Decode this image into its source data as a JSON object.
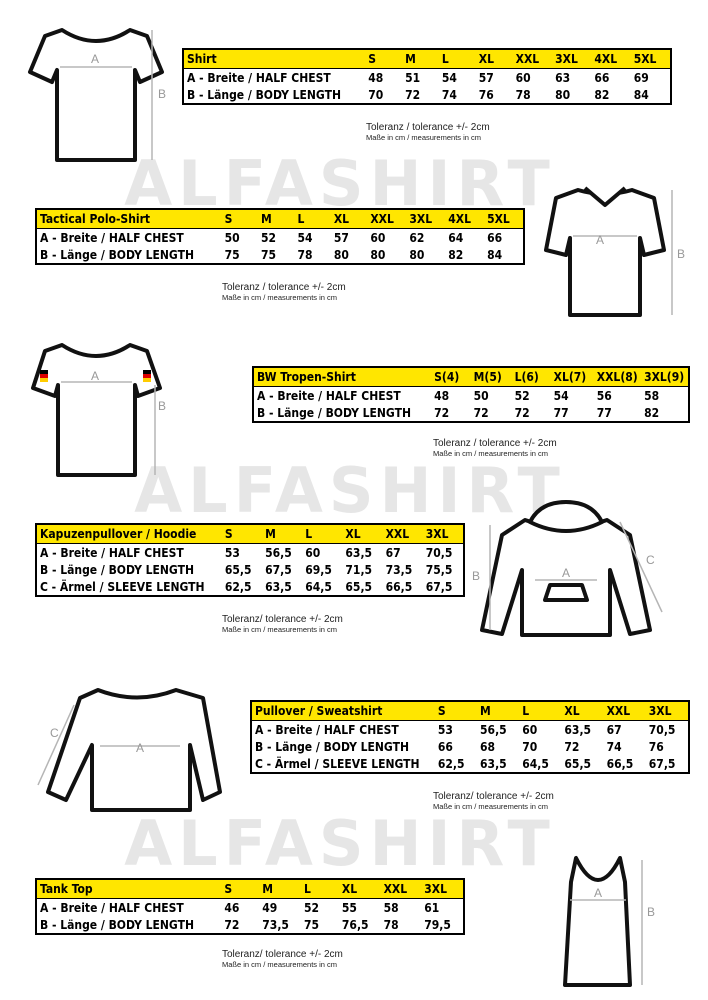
{
  "watermark": "ALFASHIRT",
  "dimension_labels": [
    "A",
    "B",
    "C"
  ],
  "sections": [
    {
      "table": {
        "header": [
          "Shirt",
          "S",
          "M",
          "L",
          "XL",
          "XXL",
          "3XL",
          "4XL",
          "5XL"
        ],
        "rows": [
          [
            "A -  Breite / HALF CHEST",
            "48",
            "51",
            "54",
            "57",
            "60",
            "63",
            "66",
            "69"
          ],
          [
            "B -  Länge / BODY LENGTH",
            "70",
            "72",
            "74",
            "76",
            "78",
            "80",
            "82",
            "84"
          ]
        ]
      },
      "note": {
        "tolerance": "Toleranz / tolerance +/- 2cm",
        "units": "Maße in cm / measurements in cm"
      }
    },
    {
      "table": {
        "header": [
          "Tactical Polo-Shirt",
          "S",
          "M",
          "L",
          "XL",
          "XXL",
          "3XL",
          "4XL",
          "5XL"
        ],
        "rows": [
          [
            "A -  Breite / HALF CHEST",
            "50",
            "52",
            "54",
            "57",
            "60",
            "62",
            "64",
            "66"
          ],
          [
            "B -  Länge / BODY LENGTH",
            "75",
            "75",
            "78",
            "80",
            "80",
            "80",
            "82",
            "84"
          ]
        ]
      },
      "note": {
        "tolerance": "Toleranz / tolerance +/- 2cm",
        "units": "Maße in cm / measurements in cm"
      }
    },
    {
      "table": {
        "header": [
          "BW Tropen-Shirt",
          "S(4)",
          "M(5)",
          "L(6)",
          "XL(7)",
          "XXL(8)",
          "3XL(9)"
        ],
        "rows": [
          [
            "A -  Breite / HALF CHEST",
            "48",
            "50",
            "52",
            "54",
            "56",
            "58"
          ],
          [
            "B -  Länge / BODY LENGTH",
            "72",
            "72",
            "72",
            "77",
            "77",
            "82"
          ]
        ]
      },
      "note": {
        "tolerance": "Toleranz / tolerance +/- 2cm",
        "units": "Maße in cm / measurements in cm"
      }
    },
    {
      "table": {
        "header": [
          "Kapuzenpullover / Hoodie",
          "S",
          "M",
          "L",
          "XL",
          "XXL",
          "3XL"
        ],
        "rows": [
          [
            "A -  Breite / HALF CHEST",
            "53",
            "56,5",
            "60",
            "63,5",
            "67",
            "70,5"
          ],
          [
            "B -  Länge / BODY LENGTH",
            "65,5",
            "67,5",
            "69,5",
            "71,5",
            "73,5",
            "75,5"
          ],
          [
            "C -  Ärmel / SLEEVE LENGTH",
            "62,5",
            "63,5",
            "64,5",
            "65,5",
            "66,5",
            "67,5"
          ]
        ]
      },
      "note": {
        "tolerance": "Toleranz/ tolerance +/- 2cm",
        "units": "Maße in cm / measurements in cm"
      }
    },
    {
      "table": {
        "header": [
          "Pullover / Sweatshirt",
          "S",
          "M",
          "L",
          "XL",
          "XXL",
          "3XL"
        ],
        "rows": [
          [
            "A -  Breite / HALF CHEST",
            "53",
            "56,5",
            "60",
            "63,5",
            "67",
            "70,5"
          ],
          [
            "B -  Länge / BODY LENGTH",
            "66",
            "68",
            "70",
            "72",
            "74",
            "76"
          ],
          [
            "C -  Ärmel / SLEEVE LENGTH",
            "62,5",
            "63,5",
            "64,5",
            "65,5",
            "66,5",
            "67,5"
          ]
        ]
      },
      "note": {
        "tolerance": "Toleranz/ tolerance +/- 2cm",
        "units": "Maße in cm / measurements in cm"
      }
    },
    {
      "table": {
        "header": [
          "Tank Top",
          "S",
          "M",
          "L",
          "XL",
          "XXL",
          "3XL"
        ],
        "rows": [
          [
            "A -  Breite / HALF CHEST",
            "46",
            "49",
            "52",
            "55",
            "58",
            "61"
          ],
          [
            "B -  Länge / BODY LENGTH",
            "72",
            "73,5",
            "75",
            "76,5",
            "78",
            "79,5"
          ]
        ]
      },
      "note": {
        "tolerance": "Toleranz/ tolerance +/- 2cm",
        "units": "Maße in cm / measurements in cm"
      }
    }
  ]
}
